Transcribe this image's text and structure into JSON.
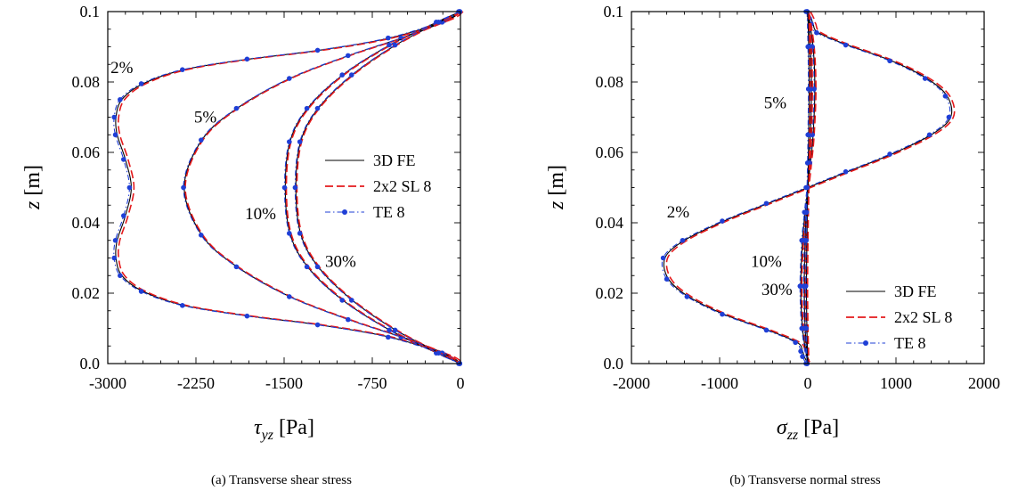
{
  "colors": {
    "fe": "#000000",
    "sl": "#e41a1c",
    "te": "#1f3fd6",
    "axis": "#000000"
  },
  "chart_data": [
    {
      "type": "line",
      "caption": "(a) Transverse shear stress",
      "xlabel": "τ_yz [Pa]",
      "xlabel_main": "τ",
      "xlabel_sub": "yz",
      "xlabel_unit": "[Pa]",
      "ylabel": "z [m]",
      "ylabel_main": "z",
      "ylabel_unit": "[m]",
      "xlim": [
        -3000,
        0
      ],
      "ylim": [
        0,
        0.1
      ],
      "xticks": [
        -3000,
        -2250,
        -1500,
        -750,
        0
      ],
      "xtick_labels": [
        "-3000",
        "-2250",
        "-1500",
        "-750",
        "0"
      ],
      "yticks": [
        0,
        0.02,
        0.04,
        0.06,
        0.08,
        0.1
      ],
      "ytick_labels": [
        "0.0",
        "0.02",
        "0.04",
        "0.06",
        "0.08",
        "0.1"
      ],
      "legend": [
        "3D FE",
        "2x2 SL 8",
        "TE 8"
      ],
      "legend_position": "middle-right",
      "annotations": [
        {
          "text": "2%",
          "x": -2880,
          "y": 0.0825
        },
        {
          "text": "5%",
          "x": -2170,
          "y": 0.0685
        },
        {
          "text": "10%",
          "x": -1700,
          "y": 0.041
        },
        {
          "text": "30%",
          "x": -1020,
          "y": 0.0275
        }
      ],
      "series": [
        {
          "name": "2%",
          "x": [
            0,
            -120,
            -600,
            -1200,
            -1800,
            -2350,
            -2700,
            -2880,
            -2930,
            -2920,
            -2850,
            -2800,
            -2850,
            -2920,
            -2930,
            -2880,
            -2700,
            -2350,
            -1800,
            -1200,
            -600,
            -120,
            0
          ],
          "y": [
            0.1,
            0.0975,
            0.0925,
            0.089,
            0.0865,
            0.0835,
            0.0795,
            0.075,
            0.07,
            0.065,
            0.058,
            0.05,
            0.042,
            0.035,
            0.03,
            0.025,
            0.0205,
            0.0165,
            0.0135,
            0.011,
            0.0075,
            0.0025,
            0
          ]
        },
        {
          "name": "5%",
          "x": [
            0,
            -150,
            -500,
            -950,
            -1450,
            -1900,
            -2200,
            -2350,
            -2200,
            -1900,
            -1450,
            -950,
            -500,
            -150,
            0
          ],
          "y": [
            0.1,
            0.097,
            0.0925,
            0.0875,
            0.081,
            0.0725,
            0.0635,
            0.05,
            0.0365,
            0.0275,
            0.019,
            0.0125,
            0.0075,
            0.003,
            0
          ]
        },
        {
          "name": "10%",
          "x": [
            0,
            -200,
            -600,
            -1000,
            -1300,
            -1450,
            -1490,
            -1450,
            -1300,
            -1000,
            -600,
            -200,
            0
          ],
          "y": [
            0.1,
            0.097,
            0.0905,
            0.082,
            0.0725,
            0.063,
            0.05,
            0.037,
            0.0275,
            0.018,
            0.0095,
            0.003,
            0
          ]
        },
        {
          "name": "30%",
          "x": [
            0,
            -180,
            -550,
            -920,
            -1210,
            -1360,
            -1400,
            -1360,
            -1210,
            -920,
            -550,
            -180,
            0
          ],
          "y": [
            0.1,
            0.097,
            0.0905,
            0.082,
            0.0725,
            0.063,
            0.05,
            0.037,
            0.0275,
            0.018,
            0.0095,
            0.003,
            0
          ]
        }
      ]
    },
    {
      "type": "line",
      "caption": "(b) Transverse normal stress",
      "xlabel": "σ_zz [Pa]",
      "xlabel_main": "σ",
      "xlabel_sub": "zz",
      "xlabel_unit": "[Pa]",
      "ylabel": "z [m]",
      "ylabel_main": "z",
      "ylabel_unit": "[m]",
      "xlim": [
        -2000,
        2000
      ],
      "ylim": [
        0,
        0.1
      ],
      "xticks": [
        -2000,
        -1000,
        0,
        1000,
        2000
      ],
      "xtick_labels": [
        "-2000",
        "-1000",
        "0",
        "1000",
        "2000"
      ],
      "yticks": [
        0,
        0.02,
        0.04,
        0.06,
        0.08,
        0.1
      ],
      "ytick_labels": [
        "0.0",
        "0.02",
        "0.04",
        "0.06",
        "0.08",
        "0.1"
      ],
      "legend": [
        "3D FE",
        "2x2 SL 8",
        "TE 8"
      ],
      "legend_position": "bottom-right",
      "annotations": [
        {
          "text": "5%",
          "x": -370,
          "y": 0.0725
        },
        {
          "text": "2%",
          "x": -1470,
          "y": 0.0415
        },
        {
          "text": "10%",
          "x": -470,
          "y": 0.0275
        },
        {
          "text": "30%",
          "x": -350,
          "y": 0.0195
        }
      ],
      "series": [
        {
          "name": "2%",
          "x": [
            0,
            40,
            60,
            120,
            450,
            950,
            1350,
            1580,
            1620,
            1400,
            950,
            450,
            0,
            -450,
            -950,
            -1400,
            -1620,
            -1580,
            -1350,
            -950,
            -450,
            -120,
            -60,
            -40,
            0
          ],
          "y": [
            0.1,
            0.098,
            0.0965,
            0.094,
            0.0905,
            0.086,
            0.081,
            0.076,
            0.07,
            0.065,
            0.0595,
            0.0545,
            0.05,
            0.0455,
            0.0405,
            0.035,
            0.03,
            0.024,
            0.019,
            0.014,
            0.0095,
            0.006,
            0.0035,
            0.002,
            0
          ]
        },
        {
          "name": "5%",
          "x": [
            0,
            60,
            80,
            60,
            30,
            0,
            -30,
            -60,
            -80,
            -60,
            0
          ],
          "y": [
            0.1,
            0.09,
            0.078,
            0.065,
            0.057,
            0.05,
            0.043,
            0.035,
            0.022,
            0.01,
            0
          ]
        },
        {
          "name": "10%",
          "x": [
            0,
            30,
            40,
            30,
            15,
            0,
            -15,
            -30,
            -40,
            -30,
            0
          ],
          "y": [
            0.1,
            0.09,
            0.078,
            0.065,
            0.057,
            0.05,
            0.043,
            0.035,
            0.022,
            0.01,
            0
          ]
        },
        {
          "name": "30%",
          "x": [
            0,
            10,
            15,
            10,
            5,
            0,
            -5,
            -10,
            -15,
            -10,
            0
          ],
          "y": [
            0.1,
            0.09,
            0.078,
            0.065,
            0.057,
            0.05,
            0.043,
            0.035,
            0.022,
            0.01,
            0
          ]
        }
      ]
    }
  ]
}
